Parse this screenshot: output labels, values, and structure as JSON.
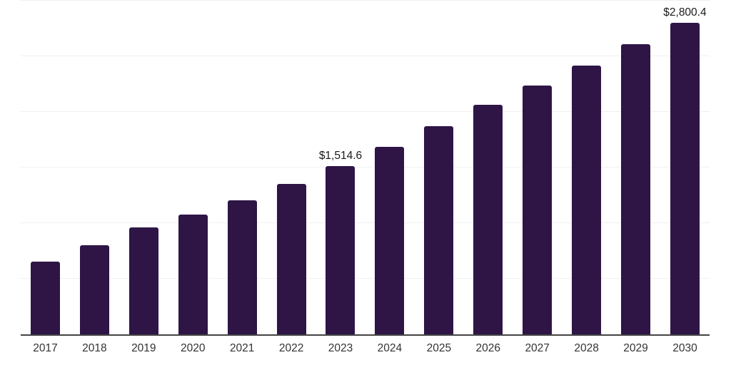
{
  "chart_data": {
    "type": "bar",
    "title": "",
    "xlabel": "",
    "ylabel": "",
    "categories": [
      "2017",
      "2018",
      "2019",
      "2020",
      "2021",
      "2022",
      "2023",
      "2024",
      "2025",
      "2026",
      "2027",
      "2028",
      "2029",
      "2030"
    ],
    "values": [
      651,
      804,
      964,
      1078,
      1206,
      1353,
      1514.6,
      1685,
      1870,
      2061,
      2240,
      2418,
      2610,
      2800.4
    ],
    "point_labels": [
      "",
      "",
      "",
      "",
      "",
      "",
      "$1,514.6",
      "",
      "",
      "",
      "",
      "",
      "",
      "$2,800.4"
    ],
    "ylim": [
      0,
      3000
    ],
    "grid_interval": 500,
    "grid": true,
    "legend_position": "none",
    "y_axis_labels_visible": false,
    "colors": {
      "bar": "#2e1546",
      "gridline": "#f0f0f0",
      "axis": "#444444",
      "tick_text": "#333333",
      "value_label_text": "#1a1a1a",
      "background": "#ffffff"
    }
  }
}
